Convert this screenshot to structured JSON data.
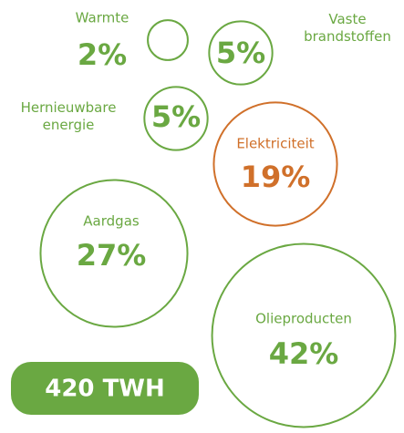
{
  "chart_data": {
    "type": "bubble",
    "categories": [
      "Warmte",
      "Vaste brandstoffen",
      "Hernieuwbare energie",
      "Elektriciteit",
      "Aardgas",
      "Olieproducten"
    ],
    "values": [
      2,
      5,
      5,
      19,
      27,
      42
    ],
    "value_labels": [
      "2%",
      "5%",
      "5%",
      "19%",
      "27%",
      "42%"
    ],
    "colors": [
      "#6aa842",
      "#6aa842",
      "#6aa842",
      "#d0702a",
      "#6aa842",
      "#6aa842"
    ],
    "total": "420 TWH"
  }
}
